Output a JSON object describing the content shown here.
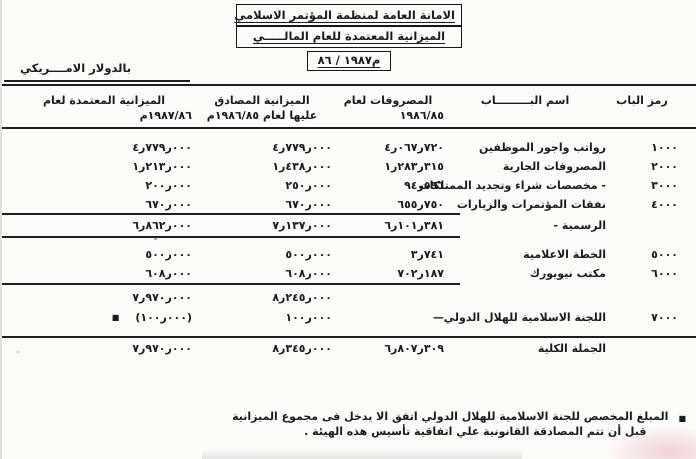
{
  "scan": {
    "header": {
      "org_title": "الامانة العامة لمنظمة المؤتمر الاسلامي",
      "doc_title": "الميزانية المعتمدة للعام المالـــــي",
      "fiscal_year": "٨٦ / ١٩٨٧م",
      "currency_note": "بالدولار الامــــريكي"
    },
    "table": {
      "col_code": "رمز الباب",
      "col_name": "اسم البـــــــــاب",
      "col_expenses_1": "المصروفات لعام",
      "col_expenses_2": "١٩٨٦/٨٥",
      "col_approved_1": "الميزانية المصادق",
      "col_approved_2a": "عليها لعام",
      "col_approved_2b": "م١٩٨٦/٨٥",
      "col_adopted_1": "الميزانية المعتمدة لعام",
      "col_adopted_2": "م١٩٨٧/٨٦",
      "rows": [
        {
          "code": "١٠٠٠",
          "name": "رواتب واجور الموظفين",
          "exp": "٤ر٠٦٧ر٧٢٠",
          "exp_value": 4067720,
          "approved": "٤ر٧٧٩ر٠٠٠",
          "approved_value": 4779000,
          "adopted": "٤ر٧٧٩ر٠٠٠",
          "adopted_value": 4779000
        },
        {
          "code": "٢٠٠٠",
          "name": "المصروفات الجارية",
          "exp": "١ر٢٨٣ر٣١٥",
          "exp_value": 1283315,
          "approved": "١ر٤٣٨ر٠٠٠",
          "approved_value": 1438000,
          "adopted": "١ر٢١٣ر٠٠٠",
          "adopted_value": 1213000
        },
        {
          "code": "٣٠٠٠",
          "name": "- مخصصات شراء وتجديد الممتلكات",
          "exp": "٩٤ر٥٩٦",
          "exp_value": 94596,
          "approved": "٢٥٠ر٠٠٠",
          "approved_value": 250000,
          "adopted": "٢٠٠ر٠٠٠",
          "adopted_value": 200000
        },
        {
          "code": "٤٠٠٠",
          "name": "نفقات المؤتمرات والزيارات",
          "exp": "٦٥٥ر٧٥٠",
          "exp_value": 655750,
          "approved": "٦٧٠ر٠٠٠",
          "approved_value": 670000,
          "adopted": "٦٧٠ر٠٠٠",
          "adopted_value": 670000
        }
      ],
      "subtotal1": {
        "name2": "الرسمية -",
        "exp": "٦ر١٠١ر٣٨١",
        "exp_value": 6101381,
        "approved": "٧ر١٣٧ر٠٠٠",
        "approved_value": 7137000,
        "adopted": "٦ر٨٦٢ر٠٠٠",
        "adopted_value": 6862000
      },
      "rows2": [
        {
          "code": "٥٠٠٠",
          "name": "الخطة الاعلامية",
          "exp": "٣ر٧٤١",
          "exp_value": 3741,
          "approved": "٥٠٠ر٠٠٠",
          "approved_value": 500000,
          "adopted": "٥٠٠ر٠٠٠",
          "adopted_value": 500000
        },
        {
          "code": "٦٠٠٠",
          "name": "مكتب نيويورك",
          "exp": "٧٠٢ر١٨٧",
          "exp_value": 702187,
          "approved": "٦٠٨ر٠٠٠",
          "approved_value": 608000,
          "adopted": "٦٠٨ر٠٠٠",
          "adopted_value": 608000
        }
      ],
      "subtotal2": {
        "approved": "٨ر٢٤٥ر٠٠٠",
        "approved_value": 8245000,
        "adopted": "٧ر٩٧٠ر٠٠٠",
        "adopted_value": 7970000
      },
      "row_7000": {
        "code": "٧٠٠٠",
        "name": "اللجنة الاسلامية للهلال الدولي",
        "exp": "—",
        "approved": "١٠٠ر٠٠٠",
        "approved_value": 100000,
        "adopted": "(١٠٠ر٠٠٠)",
        "adopted_value": 100000,
        "marker": "■"
      },
      "grand_total": {
        "label": "الجملة الكلية",
        "exp": "٦ر٨٠٧ر٣٠٩",
        "exp_value": 6807309,
        "approved": "٨ر٣٤٥ر٠٠٠",
        "approved_value": 8345000,
        "adopted": "٧ر٩٧٠ر٠٠٠",
        "adopted_value": 7970000
      }
    },
    "footnote": {
      "marker": "■",
      "line1": "المبلغ المخصص للجنة الاسلامية للهلال الدولي اتفق الا يدخل فى مجموع الميزانية",
      "line2": "قبل أن تتم المصادقة القانونية علي اتفاقية تأسيس هذه الهيئة ."
    }
  }
}
